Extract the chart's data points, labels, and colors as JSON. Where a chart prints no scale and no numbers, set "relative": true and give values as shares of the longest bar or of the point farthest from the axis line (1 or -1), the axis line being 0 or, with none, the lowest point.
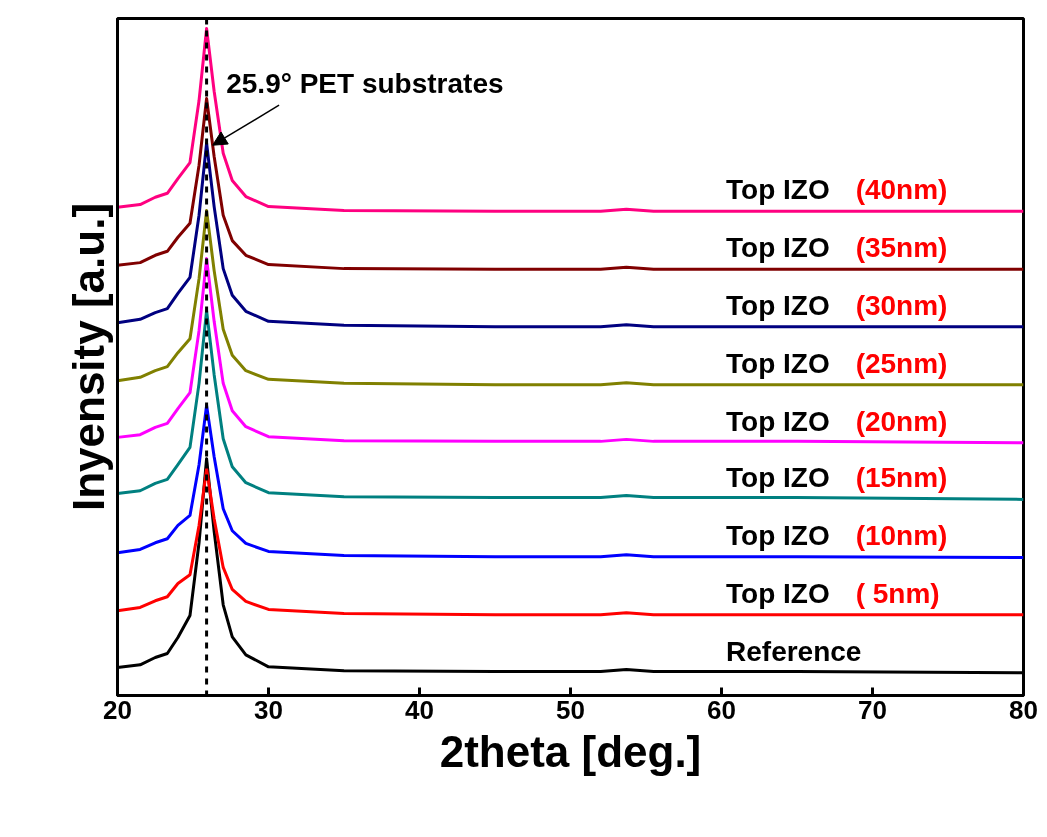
{
  "chart_data": {
    "type": "line",
    "relative": true,
    "xlabel": "2theta [deg.]",
    "ylabel": "Inyensity [a.u.]",
    "x": [
      20,
      21.5,
      22.5,
      23.3,
      24.0,
      24.8,
      25.4,
      25.9,
      26.4,
      27.0,
      27.6,
      28.5,
      30,
      35,
      45,
      52,
      53.7,
      55.5,
      65,
      80
    ],
    "xlim": [
      20,
      80
    ],
    "xticks": [
      20,
      30,
      40,
      50,
      60,
      70,
      80
    ],
    "grid": false,
    "tick_labels": "x",
    "line_style": "solid",
    "ref_lines": [
      {
        "axis": "x",
        "value": 25.9,
        "color": "#000000",
        "line_style": "dashed"
      }
    ],
    "annotations": [
      {
        "text": "25.9° PET substrates",
        "x": 26.3,
        "y": 0.825
      }
    ],
    "series": [
      {
        "name": "Reference",
        "color": "#000000",
        "values": [
          0.042,
          0.046,
          0.057,
          0.063,
          0.087,
          0.12,
          0.229,
          0.355,
          0.246,
          0.136,
          0.088,
          0.061,
          0.043,
          0.037,
          0.036,
          0.036,
          0.039,
          0.036,
          0.036,
          0.034
        ]
      },
      {
        "name": "Top IZO ( 5nm)",
        "color": "#ff0000",
        "values": [
          0.127,
          0.132,
          0.142,
          0.148,
          0.168,
          0.181,
          0.255,
          0.34,
          0.265,
          0.192,
          0.159,
          0.141,
          0.129,
          0.123,
          0.121,
          0.121,
          0.124,
          0.121,
          0.121,
          0.121
        ]
      },
      {
        "name": "Top IZO (10nm)",
        "color": "#0000ff",
        "values": [
          0.214,
          0.219,
          0.229,
          0.235,
          0.255,
          0.27,
          0.346,
          0.435,
          0.358,
          0.28,
          0.247,
          0.228,
          0.216,
          0.21,
          0.208,
          0.208,
          0.211,
          0.208,
          0.208,
          0.207
        ]
      },
      {
        "name": "Top IZO (15nm)",
        "color": "#008080",
        "values": [
          0.303,
          0.307,
          0.318,
          0.324,
          0.346,
          0.372,
          0.468,
          0.577,
          0.481,
          0.385,
          0.343,
          0.319,
          0.304,
          0.298,
          0.297,
          0.297,
          0.3,
          0.297,
          0.297,
          0.294
        ]
      },
      {
        "name": "Top IZO (20nm)",
        "color": "#ff00ff",
        "values": [
          0.387,
          0.391,
          0.402,
          0.408,
          0.43,
          0.454,
          0.547,
          0.655,
          0.561,
          0.468,
          0.427,
          0.403,
          0.388,
          0.382,
          0.381,
          0.381,
          0.384,
          0.381,
          0.381,
          0.379
        ]
      },
      {
        "name": "Top IZO (25nm)",
        "color": "#808000",
        "values": [
          0.472,
          0.477,
          0.487,
          0.493,
          0.514,
          0.535,
          0.625,
          0.727,
          0.637,
          0.549,
          0.51,
          0.487,
          0.474,
          0.468,
          0.466,
          0.466,
          0.469,
          0.466,
          0.466,
          0.466
        ]
      },
      {
        "name": "Top IZO (30nm)",
        "color": "#000080",
        "values": [
          0.559,
          0.564,
          0.574,
          0.58,
          0.603,
          0.627,
          0.72,
          0.828,
          0.733,
          0.64,
          0.6,
          0.576,
          0.561,
          0.555,
          0.553,
          0.553,
          0.556,
          0.553,
          0.553,
          0.553
        ]
      },
      {
        "name": "Top IZO (35nm)",
        "color": "#800000",
        "values": [
          0.645,
          0.649,
          0.66,
          0.666,
          0.687,
          0.708,
          0.795,
          0.895,
          0.808,
          0.72,
          0.682,
          0.66,
          0.646,
          0.64,
          0.639,
          0.639,
          0.642,
          0.639,
          0.639,
          0.639
        ]
      },
      {
        "name": "Top IZO (40nm)",
        "color": "#ff0080",
        "values": [
          0.732,
          0.736,
          0.747,
          0.753,
          0.775,
          0.799,
          0.892,
          1,
          0.906,
          0.813,
          0.772,
          0.748,
          0.733,
          0.727,
          0.726,
          0.726,
          0.729,
          0.726,
          0.726,
          0.726
        ]
      }
    ]
  }
}
